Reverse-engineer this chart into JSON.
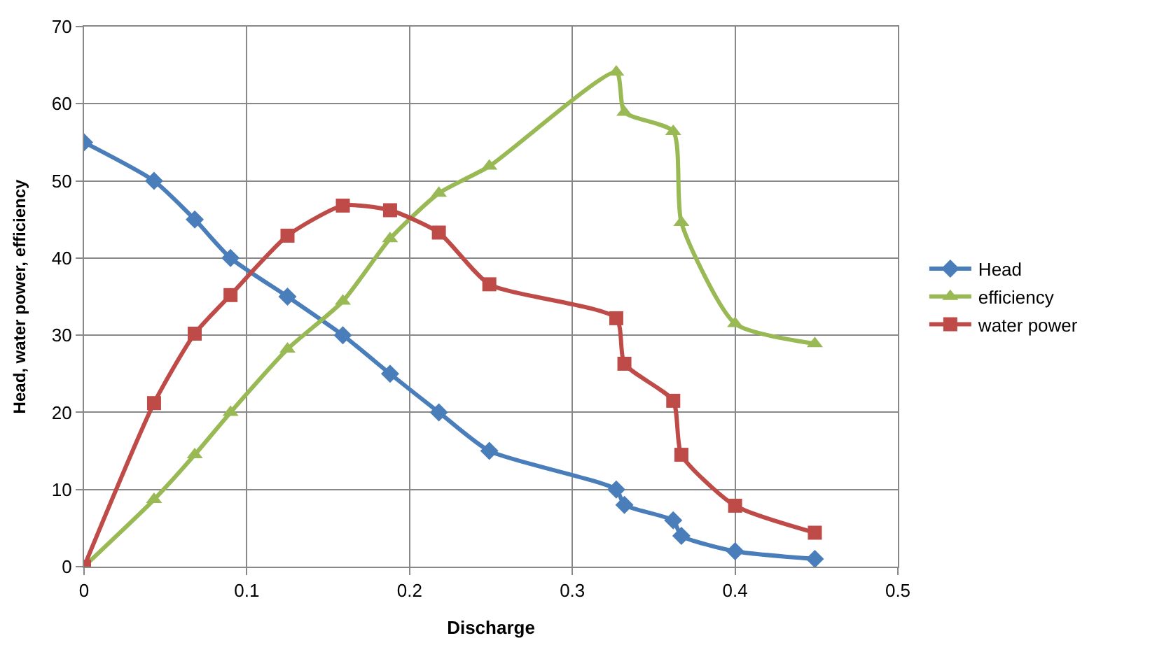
{
  "chart_data": {
    "type": "line",
    "xlabel": "Discharge",
    "ylabel": "Head, water power, efficiency",
    "x": [
      0,
      0.043,
      0.068,
      0.09,
      0.125,
      0.159,
      0.188,
      0.218,
      0.249,
      0.327,
      0.332,
      0.362,
      0.367,
      0.4,
      0.449
    ],
    "series": [
      {
        "name": "Head",
        "color": "#4a7ebb",
        "marker": "diamond",
        "values": [
          55,
          50,
          45,
          40,
          35,
          30,
          25,
          20,
          15,
          10,
          8,
          6,
          4,
          2,
          1
        ]
      },
      {
        "name": "efficiency",
        "color": "#98b954",
        "marker": "triangle",
        "values": [
          0,
          8.7,
          14.5,
          20,
          28.2,
          34.4,
          42.5,
          48.4,
          51.9,
          64.1,
          58.9,
          56.4,
          44.6,
          31.5,
          28.9
        ]
      },
      {
        "name": "water power",
        "color": "#be4b48",
        "marker": "square",
        "values": [
          0,
          21.2,
          30.2,
          35.2,
          42.9,
          46.8,
          46.2,
          43.3,
          36.6,
          32.2,
          26.3,
          21.5,
          14.5,
          7.9,
          4.4
        ]
      }
    ],
    "xlim": [
      0,
      0.5
    ],
    "xticks": [
      0,
      0.1,
      0.2,
      0.3,
      0.4,
      0.5
    ],
    "ylim": [
      0,
      70
    ],
    "yticks": [
      0,
      10,
      20,
      30,
      40,
      50,
      60,
      70
    ],
    "grid": true,
    "legend": "right",
    "line_style": "solid"
  }
}
